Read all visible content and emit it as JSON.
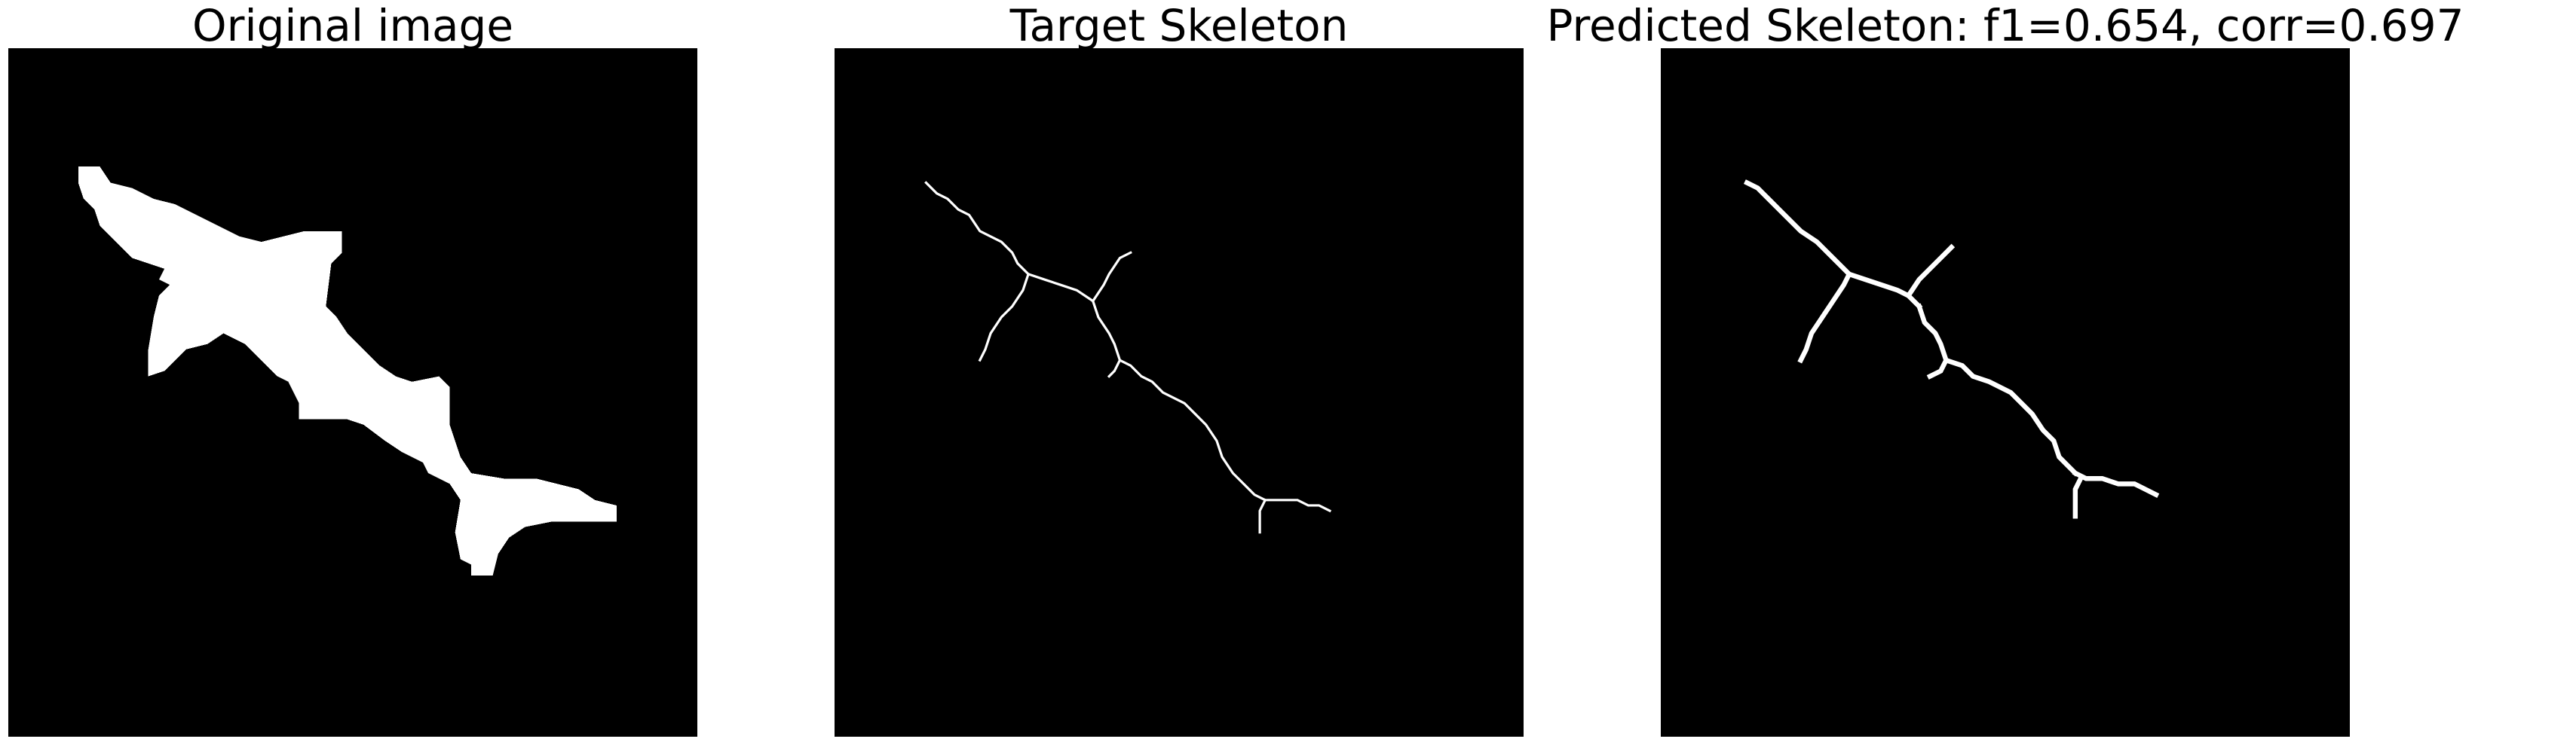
{
  "panels": [
    {
      "title": "Original image",
      "content": "binary silhouette of a shark (white on black)"
    },
    {
      "title": "Target Skeleton",
      "content": "thin white skeleton lines on black"
    },
    {
      "title": "Predicted Skeleton: f1=0.654, corr=0.697",
      "content": "slightly thicker white skeleton lines on black"
    }
  ],
  "colors": {
    "background": "#000000",
    "foreground": "#ffffff",
    "page": "#ffffff"
  }
}
